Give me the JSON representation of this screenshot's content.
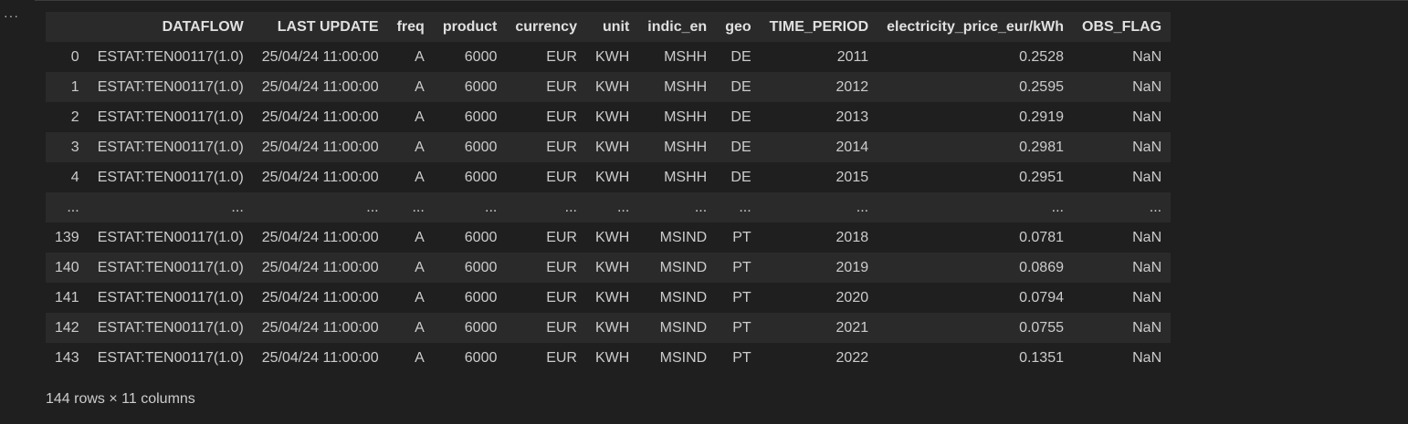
{
  "more_glyph": "···",
  "table": {
    "columns": [
      "DATAFLOW",
      "LAST UPDATE",
      "freq",
      "product",
      "currency",
      "unit",
      "indic_en",
      "geo",
      "TIME_PERIOD",
      "electricity_price_eur/kWh",
      "OBS_FLAG"
    ],
    "rows": [
      {
        "index": "0",
        "cells": [
          "ESTAT:TEN00117(1.0)",
          "25/04/24 11:00:00",
          "A",
          "6000",
          "EUR",
          "KWH",
          "MSHH",
          "DE",
          "2011",
          "0.2528",
          "NaN"
        ]
      },
      {
        "index": "1",
        "cells": [
          "ESTAT:TEN00117(1.0)",
          "25/04/24 11:00:00",
          "A",
          "6000",
          "EUR",
          "KWH",
          "MSHH",
          "DE",
          "2012",
          "0.2595",
          "NaN"
        ]
      },
      {
        "index": "2",
        "cells": [
          "ESTAT:TEN00117(1.0)",
          "25/04/24 11:00:00",
          "A",
          "6000",
          "EUR",
          "KWH",
          "MSHH",
          "DE",
          "2013",
          "0.2919",
          "NaN"
        ]
      },
      {
        "index": "3",
        "cells": [
          "ESTAT:TEN00117(1.0)",
          "25/04/24 11:00:00",
          "A",
          "6000",
          "EUR",
          "KWH",
          "MSHH",
          "DE",
          "2014",
          "0.2981",
          "NaN"
        ]
      },
      {
        "index": "4",
        "cells": [
          "ESTAT:TEN00117(1.0)",
          "25/04/24 11:00:00",
          "A",
          "6000",
          "EUR",
          "KWH",
          "MSHH",
          "DE",
          "2015",
          "0.2951",
          "NaN"
        ]
      },
      {
        "index": "...",
        "cells": [
          "...",
          "...",
          "...",
          "...",
          "...",
          "...",
          "...",
          "...",
          "...",
          "...",
          "..."
        ]
      },
      {
        "index": "139",
        "cells": [
          "ESTAT:TEN00117(1.0)",
          "25/04/24 11:00:00",
          "A",
          "6000",
          "EUR",
          "KWH",
          "MSIND",
          "PT",
          "2018",
          "0.0781",
          "NaN"
        ]
      },
      {
        "index": "140",
        "cells": [
          "ESTAT:TEN00117(1.0)",
          "25/04/24 11:00:00",
          "A",
          "6000",
          "EUR",
          "KWH",
          "MSIND",
          "PT",
          "2019",
          "0.0869",
          "NaN"
        ]
      },
      {
        "index": "141",
        "cells": [
          "ESTAT:TEN00117(1.0)",
          "25/04/24 11:00:00",
          "A",
          "6000",
          "EUR",
          "KWH",
          "MSIND",
          "PT",
          "2020",
          "0.0794",
          "NaN"
        ]
      },
      {
        "index": "142",
        "cells": [
          "ESTAT:TEN00117(1.0)",
          "25/04/24 11:00:00",
          "A",
          "6000",
          "EUR",
          "KWH",
          "MSIND",
          "PT",
          "2021",
          "0.0755",
          "NaN"
        ]
      },
      {
        "index": "143",
        "cells": [
          "ESTAT:TEN00117(1.0)",
          "25/04/24 11:00:00",
          "A",
          "6000",
          "EUR",
          "KWH",
          "MSIND",
          "PT",
          "2022",
          "0.1351",
          "NaN"
        ]
      }
    ]
  },
  "footer": "144 rows × 11 columns",
  "colors": {
    "background": "#1f1f1f",
    "stripe": "#2a2a2a",
    "text": "#cccccc"
  }
}
